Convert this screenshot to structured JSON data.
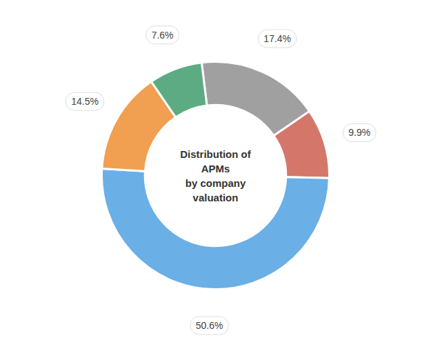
{
  "chart_data": {
    "type": "pie",
    "title": "Distribution of\nAPMs\nby company\nvaluation",
    "values": [
      17.4,
      9.9,
      50.6,
      14.5,
      7.6
    ],
    "value_labels": [
      "17.4%",
      "9.9%",
      "50.6%",
      "14.5%",
      "7.6%"
    ],
    "colors": [
      "#a0a0a0",
      "#d4776a",
      "#6aafe6",
      "#f0a050",
      "#5dab82"
    ],
    "data_labels": true
  }
}
